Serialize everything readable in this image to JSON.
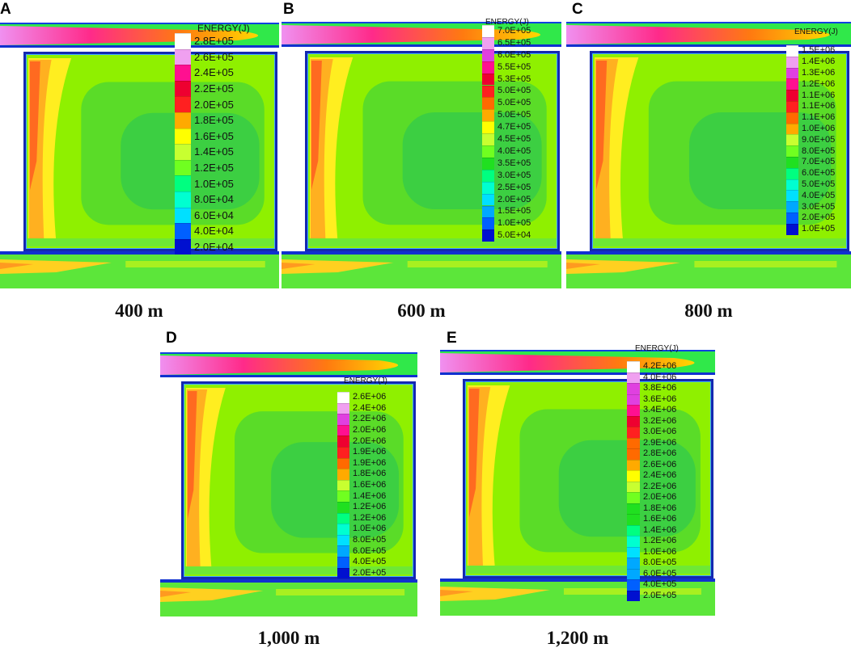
{
  "figure": {
    "legend_title": "ENERGY(J)",
    "panels": [
      {
        "letter": "A",
        "depth_label": "400 m",
        "legend_values": [
          "2.8E+05",
          "2.6E+05",
          "2.4E+05",
          "2.2E+05",
          "2.0E+05",
          "1.8E+05",
          "1.6E+05",
          "1.4E+05",
          "1.2E+05",
          "1.0E+05",
          "8.0E+04",
          "6.0E+04",
          "4.0E+04",
          "2.0E+04"
        ]
      },
      {
        "letter": "B",
        "depth_label": "600 m",
        "legend_values": [
          "7.0E+05",
          "6.5E+05",
          "6.0E+05",
          "5.5E+05",
          "5.3E+05",
          "5.0E+05",
          "5.0E+05",
          "5.0E+05",
          "4.7E+05",
          "4.5E+05",
          "4.0E+05",
          "3.5E+05",
          "3.0E+05",
          "2.5E+05",
          "2.0E+05",
          "1.5E+05",
          "1.0E+05",
          "5.0E+04"
        ]
      },
      {
        "letter": "C",
        "depth_label": "800 m",
        "legend_values": [
          "1.5E+06",
          "1.4E+06",
          "1.3E+06",
          "1.2E+06",
          "1.1E+06",
          "1.1E+06",
          "1.1E+06",
          "1.0E+06",
          "9.0E+05",
          "8.0E+05",
          "7.0E+05",
          "6.0E+05",
          "5.0E+05",
          "4.0E+05",
          "3.0E+05",
          "2.0E+05",
          "1.0E+05"
        ]
      },
      {
        "letter": "D",
        "depth_label": "1,000 m",
        "legend_values": [
          "2.6E+06",
          "2.4E+06",
          "2.2E+06",
          "2.0E+06",
          "2.0E+06",
          "1.9E+06",
          "1.9E+06",
          "1.8E+06",
          "1.6E+06",
          "1.4E+06",
          "1.2E+06",
          "1.2E+06",
          "1.0E+06",
          "8.0E+05",
          "6.0E+05",
          "4.0E+05",
          "2.0E+05"
        ]
      },
      {
        "letter": "E",
        "depth_label": "1,200 m",
        "legend_values": [
          "4.2E+06",
          "4.0E+06",
          "3.8E+06",
          "3.6E+06",
          "3.4E+06",
          "3.2E+06",
          "3.0E+06",
          "2.9E+06",
          "2.8E+06",
          "2.6E+06",
          "2.4E+06",
          "2.2E+06",
          "2.0E+06",
          "1.8E+06",
          "1.6E+06",
          "1.4E+06",
          "1.2E+06",
          "1.0E+06",
          "8.0E+05",
          "6.0E+05",
          "4.0E+05",
          "2.0E+05"
        ]
      }
    ],
    "legend_colors": [
      "#ffffff",
      "#f0a0f0",
      "#e040e0",
      "#ff1090",
      "#ee0030",
      "#ff2020",
      "#ff6a00",
      "#ffaa00",
      "#ffff00",
      "#c8ff30",
      "#70ff20",
      "#20e020",
      "#00ff80",
      "#00ffd0",
      "#00e0ff",
      "#00a8ff",
      "#0060ff",
      "#0010d0"
    ]
  }
}
